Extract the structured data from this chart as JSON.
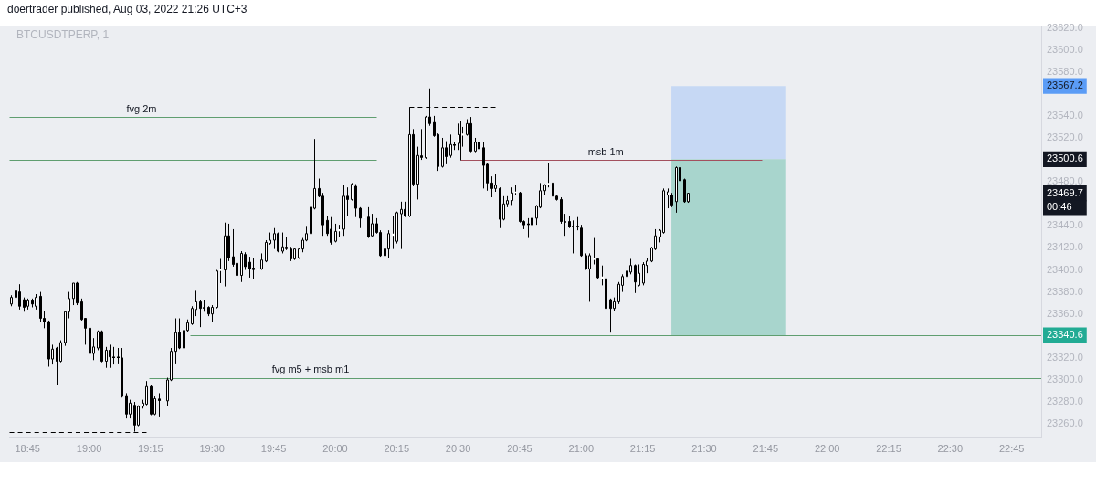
{
  "chart_data": {
    "type": "candlestick",
    "title": "doertrader published, Aug 03, 2022 21:26 UTC+3",
    "subtitle": "BTCUSDTPERP, 1",
    "x": [
      18.6833,
      18.7,
      18.7167,
      18.7333,
      18.75,
      18.7667,
      18.7833,
      18.8,
      18.8167,
      18.8333,
      18.85,
      18.8667,
      18.8833,
      18.9,
      18.9167,
      18.9333,
      18.95,
      18.9667,
      18.9833,
      19,
      19.0167,
      19.0333,
      19.05,
      19.0667,
      19.0833,
      19.1,
      19.1167,
      19.1333,
      19.15,
      19.1667,
      19.1833,
      19.2,
      19.2167,
      19.2333,
      19.25,
      19.2667,
      19.2833,
      19.3,
      19.3167,
      19.3333,
      19.35,
      19.3667,
      19.3833,
      19.4,
      19.4167,
      19.4333,
      19.45,
      19.4667,
      19.4833,
      19.5,
      19.5167,
      19.5333,
      19.55,
      19.5667,
      19.5833,
      19.6,
      19.6167,
      19.6333,
      19.65,
      19.6667,
      19.6833,
      19.7,
      19.7167,
      19.7333,
      19.75,
      19.7667,
      19.7833,
      19.8,
      19.8167,
      19.8333,
      19.85,
      19.8667,
      19.8833,
      19.9,
      19.9167,
      19.9333,
      19.95,
      19.9667,
      19.9833,
      20,
      20.0167,
      20.0333,
      20.05,
      20.0667,
      20.0833,
      20.1,
      20.1167,
      20.1333,
      20.15,
      20.1667,
      20.1833,
      20.2,
      20.2167,
      20.2333,
      20.25,
      20.2667,
      20.2833,
      20.3,
      20.3167,
      20.3333,
      20.35,
      20.3667,
      20.3833,
      20.4,
      20.4167,
      20.4333,
      20.45,
      20.4667,
      20.4833,
      20.5,
      20.5167,
      20.5333,
      20.55,
      20.5667,
      20.5833,
      20.6,
      20.6167,
      20.6333,
      20.65,
      20.6667,
      20.6833,
      20.7,
      20.7167,
      20.7333,
      20.75,
      20.7667,
      20.7833,
      20.8,
      20.8167,
      20.8333,
      20.85,
      20.8667,
      20.8833,
      20.9,
      20.9167,
      20.9333,
      20.95,
      20.9667,
      20.9833,
      21,
      21.0167,
      21.0333,
      21.05,
      21.0667,
      21.0833,
      21.1,
      21.1167,
      21.1333,
      21.15,
      21.1667,
      21.1833,
      21.2,
      21.2167,
      21.2333,
      21.25,
      21.2667,
      21.2833,
      21.3,
      21.3167,
      21.3333,
      21.35,
      21.3667,
      21.3833,
      21.4,
      21.4167,
      21.4333
    ],
    "ohlc": [
      [
        23369,
        23377,
        23367,
        23375
      ],
      [
        23375,
        23386,
        23373,
        23381
      ],
      [
        23380,
        23387,
        23364,
        23367
      ],
      [
        23373,
        23375,
        23362,
        23366
      ],
      [
        23367,
        23374,
        23364,
        23372
      ],
      [
        23372,
        23374,
        23366,
        23369
      ],
      [
        23367,
        23378,
        23364,
        23375
      ],
      [
        23376,
        23380,
        23353,
        23356
      ],
      [
        23356,
        23363,
        23347,
        23353
      ],
      [
        23353,
        23354,
        23312,
        23319
      ],
      [
        23319,
        23332,
        23314,
        23328
      ],
      [
        23329,
        23330,
        23295,
        23317
      ],
      [
        23317,
        23336,
        23316,
        23334
      ],
      [
        23334,
        23363,
        23331,
        23362
      ],
      [
        23362,
        23380,
        23356,
        23374
      ],
      [
        23374,
        23388,
        23368,
        23388
      ],
      [
        23388,
        23389,
        23368,
        23370
      ],
      [
        23371,
        23374,
        23354,
        23355
      ],
      [
        23356,
        23356,
        23332,
        23347
      ],
      [
        23347,
        23348,
        23323,
        23324
      ],
      [
        23324,
        23338,
        23318,
        23330
      ],
      [
        23329,
        23345,
        23327,
        23344
      ],
      [
        23344,
        23345,
        23316,
        23317
      ],
      [
        23317,
        23330,
        23311,
        23327
      ],
      [
        23327,
        23332,
        23311,
        23321
      ],
      [
        23321,
        23330,
        23314,
        23320
      ],
      [
        23321,
        23329,
        23315,
        23320
      ],
      [
        23320,
        23329,
        23284,
        23285
      ],
      [
        23285,
        23288,
        23265,
        23269
      ],
      [
        23269,
        23282,
        23265,
        23279
      ],
      [
        23277,
        23280,
        23253,
        23259
      ],
      [
        23259,
        23277,
        23258,
        23276
      ],
      [
        23276,
        23282,
        23274,
        23279
      ],
      [
        23278,
        23299,
        23277,
        23294
      ],
      [
        23294,
        23295,
        23268,
        23269
      ],
      [
        23269,
        23285,
        23268,
        23283
      ],
      [
        23283,
        23288,
        23266,
        23281
      ],
      [
        23281,
        23285,
        23278,
        23282
      ],
      [
        23281,
        23302,
        23276,
        23300
      ],
      [
        23300,
        23329,
        23299,
        23326
      ],
      [
        23326,
        23356,
        23315,
        23343
      ],
      [
        23343,
        23356,
        23328,
        23329
      ],
      [
        23329,
        23347,
        23328,
        23345
      ],
      [
        23345,
        23355,
        23344,
        23352
      ],
      [
        23351,
        23367,
        23350,
        23365
      ],
      [
        23364,
        23381,
        23358,
        23371
      ],
      [
        23371,
        23373,
        23348,
        23365
      ],
      [
        23366,
        23373,
        23362,
        23365
      ],
      [
        23366,
        23367,
        23358,
        23360
      ],
      [
        23360,
        23368,
        23353,
        23366
      ],
      [
        23366,
        23400,
        23365,
        23399
      ],
      [
        23399,
        23410,
        23388,
        23401
      ],
      [
        23400,
        23443,
        23385,
        23431
      ],
      [
        23431,
        23442,
        23408,
        23411
      ],
      [
        23412,
        23437,
        23403,
        23405
      ],
      [
        23406,
        23411,
        23389,
        23395
      ],
      [
        23395,
        23417,
        23389,
        23415
      ],
      [
        23414,
        23416,
        23400,
        23403
      ],
      [
        23407,
        23412,
        23393,
        23401
      ],
      [
        23402,
        23411,
        23392,
        23400
      ],
      [
        23400,
        23402,
        23399,
        23401
      ],
      [
        23401,
        23415,
        23400,
        23409
      ],
      [
        23408,
        23427,
        23407,
        23425
      ],
      [
        23424,
        23434,
        23423,
        23427
      ],
      [
        23427,
        23438,
        23419,
        23433
      ],
      [
        23433,
        23434,
        23416,
        23417
      ],
      [
        23417,
        23434,
        23415,
        23421
      ],
      [
        23421,
        23430,
        23418,
        23419
      ],
      [
        23419,
        23421,
        23408,
        23410
      ],
      [
        23410,
        23420,
        23409,
        23419
      ],
      [
        23411,
        23420,
        23410,
        23419
      ],
      [
        23419,
        23429,
        23416,
        23427
      ],
      [
        23427,
        23440,
        23426,
        23433
      ],
      [
        23433,
        23475,
        23432,
        23457
      ],
      [
        23456,
        23519,
        23455,
        23474
      ],
      [
        23474,
        23483,
        23466,
        23467
      ],
      [
        23467,
        23470,
        23431,
        23441
      ],
      [
        23445,
        23449,
        23431,
        23433
      ],
      [
        23437,
        23448,
        23423,
        23425
      ],
      [
        23426,
        23442,
        23425,
        23435
      ],
      [
        23435,
        23441,
        23430,
        23437
      ],
      [
        23437,
        23477,
        23431,
        23467
      ],
      [
        23467,
        23475,
        23449,
        23464
      ],
      [
        23464,
        23479,
        23463,
        23478
      ],
      [
        23476,
        23478,
        23448,
        23456
      ],
      [
        23456,
        23457,
        23438,
        23447
      ],
      [
        23447,
        23460,
        23446,
        23448
      ],
      [
        23448,
        23457,
        23429,
        23430
      ],
      [
        23431,
        23451,
        23430,
        23442
      ],
      [
        23442,
        23447,
        23433,
        23434
      ],
      [
        23434,
        23436,
        23412,
        23413
      ],
      [
        23419,
        23421,
        23390,
        23413
      ],
      [
        23419,
        23436,
        23411,
        23433
      ],
      [
        23431,
        23449,
        23419,
        23433
      ],
      [
        23426,
        23453,
        23424,
        23452
      ],
      [
        23451,
        23462,
        23419,
        23455
      ],
      [
        23455,
        23462,
        23448,
        23449
      ],
      [
        23449,
        23548,
        23448,
        23523
      ],
      [
        23523,
        23528,
        23476,
        23478
      ],
      [
        23478,
        23512,
        23464,
        23504
      ],
      [
        23504,
        23528,
        23500,
        23502
      ],
      [
        23502,
        23540,
        23501,
        23539
      ],
      [
        23539,
        23565,
        23531,
        23533
      ],
      [
        23534,
        23540,
        23521,
        23522
      ],
      [
        23523,
        23524,
        23490,
        23494
      ],
      [
        23494,
        23520,
        23493,
        23511
      ],
      [
        23511,
        23517,
        23496,
        23503
      ],
      [
        23504,
        23523,
        23502,
        23514
      ],
      [
        23514,
        23516,
        23509,
        23513
      ],
      [
        23515,
        23533,
        23509,
        23523
      ],
      [
        23522,
        23530,
        23512,
        23524
      ],
      [
        23523,
        23537,
        23522,
        23533
      ],
      [
        23533,
        23539,
        23507,
        23508
      ],
      [
        23508,
        23520,
        23507,
        23516
      ],
      [
        23516,
        23519,
        23509,
        23510
      ],
      [
        23511,
        23516,
        23474,
        23495
      ],
      [
        23496,
        23497,
        23472,
        23479
      ],
      [
        23479,
        23485,
        23466,
        23474
      ],
      [
        23474,
        23487,
        23471,
        23477
      ],
      [
        23474,
        23475,
        23438,
        23446
      ],
      [
        23446,
        23467,
        23445,
        23460
      ],
      [
        23460,
        23467,
        23457,
        23463
      ],
      [
        23463,
        23475,
        23459,
        23470
      ],
      [
        23470,
        23477,
        23468,
        23471
      ],
      [
        23470,
        23471,
        23443,
        23444
      ],
      [
        23444,
        23445,
        23437,
        23441
      ],
      [
        23442,
        23447,
        23429,
        23441
      ],
      [
        23441,
        23448,
        23440,
        23447
      ],
      [
        23447,
        23459,
        23441,
        23458
      ],
      [
        23457,
        23479,
        23456,
        23472
      ],
      [
        23472,
        23478,
        23468,
        23477
      ],
      [
        23477,
        23497,
        23475,
        23479
      ],
      [
        23479,
        23480,
        23452,
        23467
      ],
      [
        23467,
        23468,
        23463,
        23464
      ],
      [
        23464,
        23466,
        23442,
        23444
      ],
      [
        23444,
        23451,
        23431,
        23443
      ],
      [
        23444,
        23449,
        23438,
        23439
      ],
      [
        23440,
        23445,
        23415,
        23439
      ],
      [
        23440,
        23448,
        23436,
        23439
      ],
      [
        23438,
        23441,
        23412,
        23413
      ],
      [
        23413,
        23415,
        23400,
        23401
      ],
      [
        23401,
        23415,
        23371,
        23413
      ],
      [
        23409,
        23429,
        23405,
        23411
      ],
      [
        23410,
        23411,
        23392,
        23393
      ],
      [
        23392,
        23404,
        23386,
        23394
      ],
      [
        23392,
        23393,
        23364,
        23365
      ],
      [
        23373,
        23374,
        23343,
        23365
      ],
      [
        23365,
        23375,
        23363,
        23371
      ],
      [
        23371,
        23389,
        23369,
        23387
      ],
      [
        23386,
        23396,
        23380,
        23394
      ],
      [
        23394,
        23410,
        23386,
        23399
      ],
      [
        23398,
        23410,
        23396,
        23404
      ],
      [
        23404,
        23405,
        23379,
        23389
      ],
      [
        23386,
        23405,
        23385,
        23397
      ],
      [
        23388,
        23407,
        23386,
        23405
      ],
      [
        23404,
        23411,
        23397,
        23408
      ],
      [
        23408,
        23421,
        23407,
        23420
      ],
      [
        23419,
        23437,
        23418,
        23431
      ],
      [
        23430,
        23437,
        23425,
        23436
      ],
      [
        23434,
        23474,
        23433,
        23472
      ],
      [
        23468,
        23474,
        23456,
        23471
      ],
      [
        23468,
        23470,
        23457,
        23459
      ],
      [
        23462,
        23494,
        23452,
        23493
      ],
      [
        23493,
        23494,
        23480,
        23481
      ],
      [
        23482,
        23483,
        23461,
        23462
      ],
      [
        23462,
        23470,
        23461,
        23469.7
      ]
    ],
    "colors": [
      "#ffffff",
      "#ffffff",
      "#000000",
      "#000000",
      "#ffffff",
      "#000000",
      "#ffffff",
      "#000000",
      "#000000",
      "#000000",
      "#ffffff",
      "#000000",
      "#ffffff",
      "#ffffff",
      "#ffffff",
      "#ffffff",
      "#000000",
      "#000000",
      "#000000",
      "#000000",
      "#ffffff",
      "#ffffff",
      "#000000",
      "#ffffff",
      "#000000",
      "#000000",
      "#000000",
      "#000000",
      "#000000",
      "#ffffff",
      "#000000",
      "#ffffff",
      "#ffffff",
      "#ffffff",
      "#000000",
      "#ffffff",
      "#000000",
      "#ffffff",
      "#ffffff",
      "#ffffff",
      "#ffffff",
      "#000000",
      "#ffffff",
      "#ffffff",
      "#ffffff",
      "#ffffff",
      "#000000",
      "#000000",
      "#000000",
      "#ffffff",
      "#ffffff",
      "#ffffff",
      "#ffffff",
      "#000000",
      "#000000",
      "#000000",
      "#ffffff",
      "#000000",
      "#000000",
      "#000000",
      "#ffffff",
      "#ffffff",
      "#ffffff",
      "#ffffff",
      "#ffffff",
      "#000000",
      "#ffffff",
      "#000000",
      "#000000",
      "#ffffff",
      "#ffffff",
      "#ffffff",
      "#ffffff",
      "#ffffff",
      "#ffffff",
      "#000000",
      "#000000",
      "#000000",
      "#000000",
      "#ffffff",
      "#ffffff",
      "#ffffff",
      "#000000",
      "#ffffff",
      "#000000",
      "#000000",
      "#ffffff",
      "#000000",
      "#ffffff",
      "#000000",
      "#000000",
      "#000000",
      "#ffffff",
      "#ffffff",
      "#ffffff",
      "#ffffff",
      "#000000",
      "#ffffff",
      "#000000",
      "#ffffff",
      "#000000",
      "#ffffff",
      "#000000",
      "#000000",
      "#000000",
      "#ffffff",
      "#000000",
      "#ffffff",
      "#000000",
      "#ffffff",
      "#ffffff",
      "#ffffff",
      "#000000",
      "#ffffff",
      "#000000",
      "#000000",
      "#000000",
      "#000000",
      "#ffffff",
      "#000000",
      "#ffffff",
      "#ffffff",
      "#ffffff",
      "#ffffff",
      "#000000",
      "#000000",
      "#000000",
      "#ffffff",
      "#ffffff",
      "#ffffff",
      "#ffffff",
      "#ffffff",
      "#000000",
      "#000000",
      "#000000",
      "#000000",
      "#000000",
      "#000000",
      "#000000",
      "#000000",
      "#000000",
      "#ffffff",
      "#ffffff",
      "#000000",
      "#ffffff",
      "#000000",
      "#000000",
      "#ffffff",
      "#ffffff",
      "#ffffff",
      "#ffffff",
      "#ffffff",
      "#000000",
      "#ffffff",
      "#ffffff",
      "#ffffff",
      "#ffffff",
      "#ffffff",
      "#ffffff",
      "#ffffff",
      "#ffffff",
      "#000000",
      "#ffffff",
      "#000000",
      "#000000",
      "#ffffff"
    ],
    "series": [
      {
        "type": "line",
        "color": "#c6d8f4",
        "x": [
          21.3667,
          21.8333
        ],
        "values": [
          null,
          null
        ],
        "lower": [
          23500.6,
          23500.6
        ],
        "upper": [
          23567.2,
          23567.2
        ]
      },
      {
        "type": "line",
        "color": "#a8d5cd",
        "x": [
          21.3667,
          21.8333
        ],
        "values": [
          null,
          null
        ],
        "lower": [
          23340.6,
          23340.6
        ],
        "upper": [
          23500.6,
          23500.6
        ]
      },
      {
        "type": "line",
        "color": "#5f9e70",
        "x": [
          18.675,
          20.1667
        ],
        "values": [
          23539,
          23539
        ]
      },
      {
        "type": "line",
        "color": "#5f9e70",
        "x": [
          18.675,
          20.1667
        ],
        "values": [
          23500,
          23500
        ]
      },
      {
        "type": "line",
        "color": "#5f9e70",
        "x": [
          19.2417,
          22.87
        ],
        "values": [
          23302,
          23302
        ]
      },
      {
        "type": "line",
        "color": "#5f9e70",
        "x": [
          19.4083,
          22.87
        ],
        "values": [
          23340.6,
          23340.6
        ]
      },
      {
        "type": "line",
        "color": "#a3505e",
        "x": [
          20.5083,
          21.7333
        ],
        "values": [
          23500,
          23500
        ]
      },
      {
        "type": "line",
        "color": "#000000",
        "line_style": "dashed",
        "x": [
          18.675,
          19.2333
        ],
        "values": [
          23253,
          23253
        ]
      },
      {
        "type": "line",
        "color": "#000000",
        "line_style": "dashed",
        "x": [
          20.3,
          20.65
        ],
        "values": [
          23548,
          23548
        ]
      },
      {
        "type": "line",
        "color": "#000000",
        "line_style": "dashed",
        "x": [
          20.5083,
          20.6333
        ],
        "values": [
          23536,
          23536
        ]
      },
      {
        "type": "line",
        "color": "#000000",
        "x": [
          20.5083,
          20.5083
        ],
        "values": [
          23500,
          23536
        ]
      }
    ],
    "annotations": [
      {
        "text": "fvg 2m",
        "x": 19.2133,
        "y": 23539
      },
      {
        "text": "fvg m5 + msb m1",
        "x": 19.9,
        "y": 23302
      },
      {
        "text": "msb 1m",
        "x": 21.1,
        "y": 23500
      },
      "00:46"
    ],
    "xlim": [
      18.675,
      22.87
    ],
    "ylim": [
      23248.5,
      23621.6
    ],
    "xticks": [
      {
        "value": 18.75,
        "label": "18:45"
      },
      {
        "value": 19,
        "label": "19:00"
      },
      {
        "value": 19.25,
        "label": "19:15"
      },
      {
        "value": 19.5,
        "label": "19:30"
      },
      {
        "value": 19.75,
        "label": "19:45"
      },
      {
        "value": 20,
        "label": "20:00"
      },
      {
        "value": 20.25,
        "label": "20:15"
      },
      {
        "value": 20.5,
        "label": "20:30"
      },
      {
        "value": 20.75,
        "label": "20:45"
      },
      {
        "value": 21,
        "label": "21:00"
      },
      {
        "value": 21.25,
        "label": "21:15"
      },
      {
        "value": 21.5,
        "label": "21:30"
      },
      {
        "value": 21.75,
        "label": "21:45"
      },
      {
        "value": 22,
        "label": "22:00"
      },
      {
        "value": 22.25,
        "label": "22:15"
      },
      {
        "value": 22.5,
        "label": "22:30"
      },
      {
        "value": 22.75,
        "label": "22:45"
      }
    ],
    "yticks": [
      {
        "value": 23260,
        "label": "23260.0"
      },
      {
        "value": 23280,
        "label": "23280.0"
      },
      {
        "value": 23300,
        "label": "23300.0"
      },
      {
        "value": 23320,
        "label": "23320.0"
      },
      23340.6,
      {
        "value": 23360,
        "label": "23360.0"
      },
      {
        "value": 23380,
        "label": "23380.0"
      },
      {
        "value": 23400,
        "label": "23400.0"
      },
      {
        "value": 23420,
        "label": "23420.0"
      },
      {
        "value": 23440,
        "label": "23440.0"
      },
      23469.7,
      {
        "value": 23480,
        "label": "23480.0"
      },
      23500.6,
      {
        "value": 23520,
        "label": "23520.0"
      },
      {
        "value": 23540,
        "label": "23540.0"
      },
      23567.2,
      {
        "value": 23580,
        "label": "23580.0"
      },
      {
        "value": 23600,
        "label": "23600.0"
      },
      {
        "value": 23620,
        "label": "23620.0"
      }
    ]
  }
}
